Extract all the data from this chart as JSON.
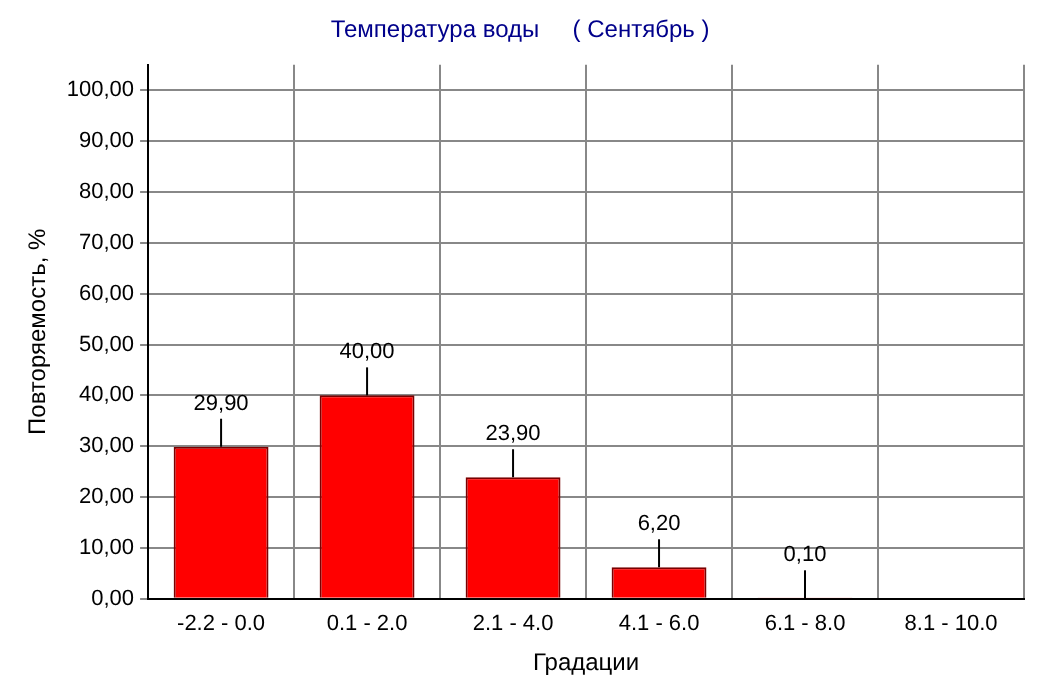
{
  "chart_data": {
    "type": "bar",
    "title": "Температура воды     ( Сентябрь )",
    "xlabel": "Градации",
    "ylabel": "Повторяемость, %",
    "categories": [
      "-2.2 - 0.0",
      "0.1 - 2.0",
      "2.1 - 4.0",
      "4.1 - 6.0",
      "6.1 - 8.0",
      "8.1 - 10.0"
    ],
    "values": [
      29.9,
      40.0,
      23.9,
      6.2,
      0.1,
      null
    ],
    "value_labels": [
      "29,90",
      "40,00",
      "23,90",
      "6,20",
      "0,10",
      null
    ],
    "color": "#ff0000",
    "ylim": [
      0,
      105
    ],
    "yticks": [
      {
        "value": 0,
        "label": "0,00"
      },
      {
        "value": 10,
        "label": "10,00"
      },
      {
        "value": 20,
        "label": "20,00"
      },
      {
        "value": 30,
        "label": "30,00"
      },
      {
        "value": 40,
        "label": "40,00"
      },
      {
        "value": 50,
        "label": "50,00"
      },
      {
        "value": 60,
        "label": "60,00"
      },
      {
        "value": 70,
        "label": "70,00"
      },
      {
        "value": 80,
        "label": "80,00"
      },
      {
        "value": 90,
        "label": "90,00"
      },
      {
        "value": 100,
        "label": "100,00"
      }
    ],
    "grid": true,
    "legend": false
  }
}
